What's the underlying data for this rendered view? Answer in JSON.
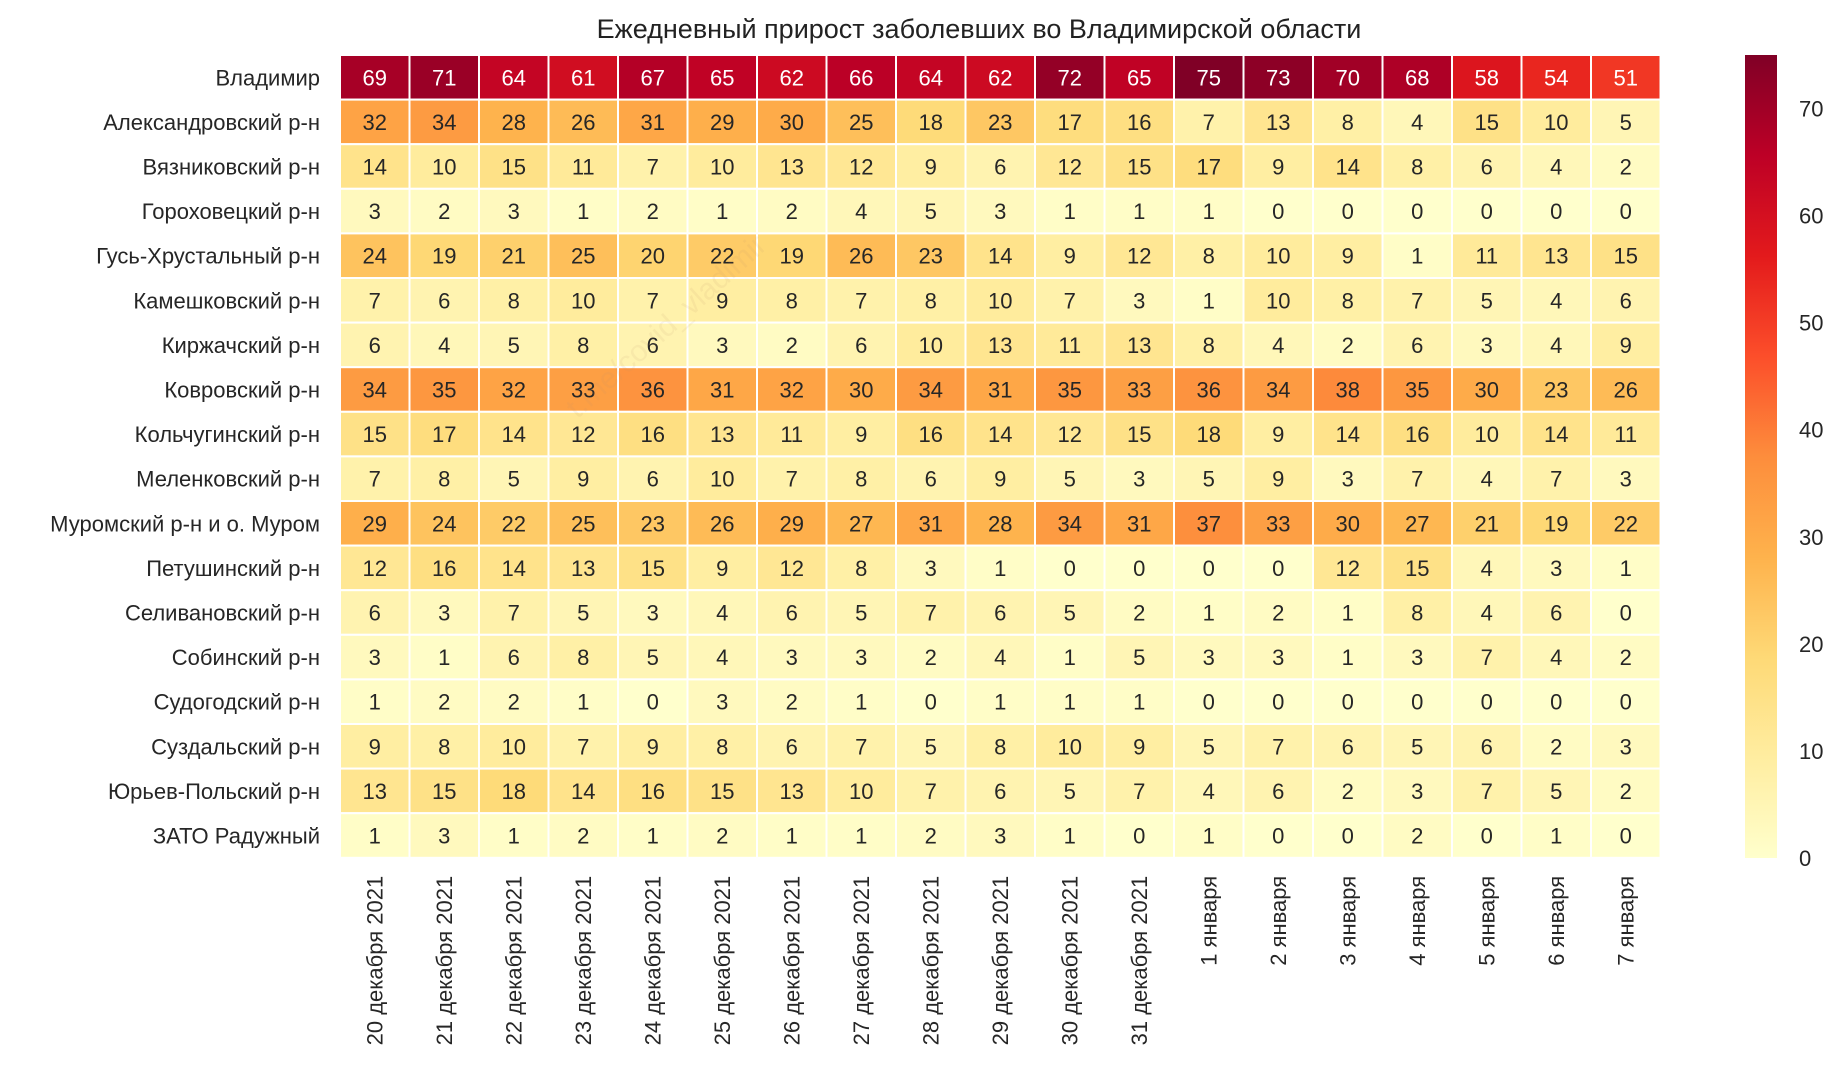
{
  "chart_data": {
    "type": "heatmap",
    "title": "Ежедневный прирост заболевших во Владимирской области",
    "rows": [
      "Владимир",
      "Александровский р-н",
      "Вязниковский р-н",
      "Гороховецкий р-н",
      "Гусь-Хрустальный р-н",
      "Камешковский р-н",
      "Киржачский р-н",
      "Ковровский р-н",
      "Кольчугинский р-н",
      "Меленковский р-н",
      "Муромский р-н и о. Муром",
      "Петушинский р-н",
      "Селивановский р-н",
      "Собинский р-н",
      "Судогодский р-н",
      "Суздальский р-н",
      "Юрьев-Польский р-н",
      "ЗАТО Радужный"
    ],
    "columns": [
      "20 декабря 2021",
      "21 декабря 2021",
      "22 декабря 2021",
      "23 декабря 2021",
      "24 декабря 2021",
      "25 декабря 2021",
      "26 декабря 2021",
      "27 декабря 2021",
      "28 декабря 2021",
      "29 декабря 2021",
      "30 декабря 2021",
      "31 декабря 2021",
      "1 января",
      "2 января",
      "3 января",
      "4 января",
      "5 января",
      "6 января",
      "7 января"
    ],
    "values": [
      [
        69,
        71,
        64,
        61,
        67,
        65,
        62,
        66,
        64,
        62,
        72,
        65,
        75,
        73,
        70,
        68,
        58,
        54,
        51
      ],
      [
        32,
        34,
        28,
        26,
        31,
        29,
        30,
        25,
        18,
        23,
        17,
        16,
        7,
        13,
        8,
        4,
        15,
        10,
        5
      ],
      [
        14,
        10,
        15,
        11,
        7,
        10,
        13,
        12,
        9,
        6,
        12,
        15,
        17,
        9,
        14,
        8,
        6,
        4,
        2
      ],
      [
        3,
        2,
        3,
        1,
        2,
        1,
        2,
        4,
        5,
        3,
        1,
        1,
        1,
        0,
        0,
        0,
        0,
        0,
        0
      ],
      [
        24,
        19,
        21,
        25,
        20,
        22,
        19,
        26,
        23,
        14,
        9,
        12,
        8,
        10,
        9,
        1,
        11,
        13,
        15
      ],
      [
        7,
        6,
        8,
        10,
        7,
        9,
        8,
        7,
        8,
        10,
        7,
        3,
        1,
        10,
        8,
        7,
        5,
        4,
        6
      ],
      [
        6,
        4,
        5,
        8,
        6,
        3,
        2,
        6,
        10,
        13,
        11,
        13,
        8,
        4,
        2,
        6,
        3,
        4,
        9
      ],
      [
        34,
        35,
        32,
        33,
        36,
        31,
        32,
        30,
        34,
        31,
        35,
        33,
        36,
        34,
        38,
        35,
        30,
        23,
        26
      ],
      [
        15,
        17,
        14,
        12,
        16,
        13,
        11,
        9,
        16,
        14,
        12,
        15,
        18,
        9,
        14,
        16,
        10,
        14,
        11
      ],
      [
        7,
        8,
        5,
        9,
        6,
        10,
        7,
        8,
        6,
        9,
        5,
        3,
        5,
        9,
        3,
        7,
        4,
        7,
        3
      ],
      [
        29,
        24,
        22,
        25,
        23,
        26,
        29,
        27,
        31,
        28,
        34,
        31,
        37,
        33,
        30,
        27,
        21,
        19,
        22
      ],
      [
        12,
        16,
        14,
        13,
        15,
        9,
        12,
        8,
        3,
        1,
        0,
        0,
        0,
        0,
        12,
        15,
        4,
        3,
        1
      ],
      [
        6,
        3,
        7,
        5,
        3,
        4,
        6,
        5,
        7,
        6,
        5,
        2,
        1,
        2,
        1,
        8,
        4,
        6,
        0
      ],
      [
        3,
        1,
        6,
        8,
        5,
        4,
        3,
        3,
        2,
        4,
        1,
        5,
        3,
        3,
        1,
        3,
        7,
        4,
        2
      ],
      [
        1,
        2,
        2,
        1,
        0,
        3,
        2,
        1,
        0,
        1,
        1,
        1,
        0,
        0,
        0,
        0,
        0,
        0,
        0
      ],
      [
        9,
        8,
        10,
        7,
        9,
        8,
        6,
        7,
        5,
        8,
        10,
        9,
        5,
        7,
        6,
        5,
        6,
        2,
        3
      ],
      [
        13,
        15,
        18,
        14,
        16,
        15,
        13,
        10,
        7,
        6,
        5,
        7,
        4,
        6,
        2,
        3,
        7,
        5,
        2
      ],
      [
        1,
        3,
        1,
        2,
        1,
        2,
        1,
        1,
        2,
        3,
        1,
        0,
        1,
        0,
        0,
        2,
        0,
        1,
        0
      ]
    ],
    "colorbar": {
      "range": [
        0,
        75
      ],
      "ticks": [
        0,
        10,
        20,
        30,
        40,
        50,
        60,
        70
      ]
    },
    "colormap": "YlOrRd",
    "colormap_stops": [
      "#ffffcc",
      "#ffeda0",
      "#fed976",
      "#feb24c",
      "#fd8d3c",
      "#fc4e2a",
      "#e31a1c",
      "#bd0026",
      "#800026"
    ],
    "cell_border_color": "#ffffff",
    "watermark": "t.me/covid_vladimir"
  }
}
